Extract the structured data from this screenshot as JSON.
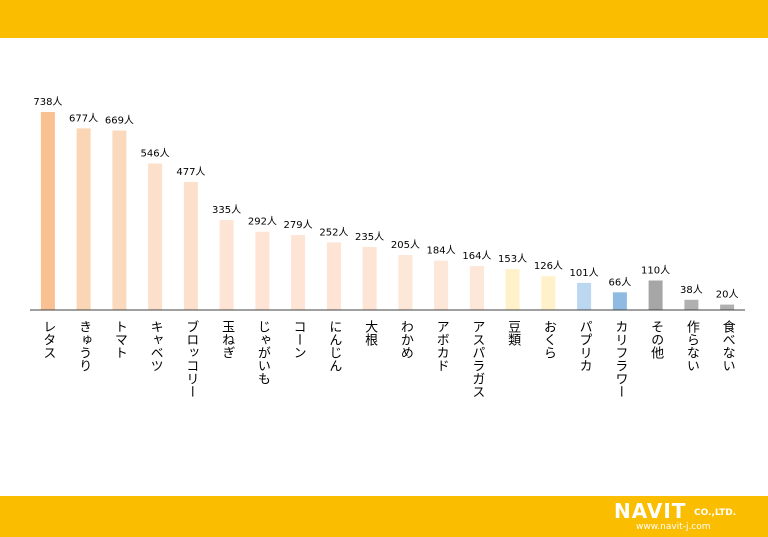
{
  "chart_data": {
    "type": "bar",
    "unit": "人",
    "categories": [
      "レタス",
      "きゅうり",
      "トマト",
      "キャベツ",
      "ブロッコリー",
      "玉ねぎ",
      "じゃがいも",
      "コーン",
      "にんじん",
      "大根",
      "わかめ",
      "アボカド",
      "アスパラガス",
      "豆類",
      "おくら",
      "パプリカ",
      "カリフラワー",
      "その他",
      "作らない",
      "食べない"
    ],
    "values": [
      738,
      677,
      669,
      546,
      477,
      335,
      292,
      279,
      252,
      235,
      205,
      184,
      164,
      153,
      126,
      101,
      66,
      110,
      38,
      20
    ],
    "data_labels": [
      "738人",
      "677人",
      "669人",
      "546人",
      "477人",
      "335人",
      "292人",
      "279人",
      "252人",
      "235人",
      "205人",
      "184人",
      "164人",
      "153人",
      "126人",
      "101人",
      "66人",
      "110人",
      "38人",
      "20人"
    ],
    "colors": [
      "#f9c192",
      "#fbd6b5",
      "#fbd9bd",
      "#fde0cb",
      "#fde0cb",
      "#fde4d4",
      "#fde4d4",
      "#fde4d4",
      "#fde4d4",
      "#fde4d4",
      "#fde7d8",
      "#fde7d8",
      "#fde7d8",
      "#fff1c9",
      "#fff1c9",
      "#bcd7f0",
      "#8fbbe3",
      "#a6a6a6",
      "#b0b0b0",
      "#b0b0b0"
    ],
    "ylim": [
      0,
      760
    ],
    "grid": false,
    "legend": "none"
  },
  "logo": {
    "name": "NAVIT",
    "suffix": "CO.,LTD.",
    "url": "www.navit-j.com"
  },
  "colors": {
    "band": "#fbbd00",
    "axis": "#404040",
    "text": "#000000"
  }
}
